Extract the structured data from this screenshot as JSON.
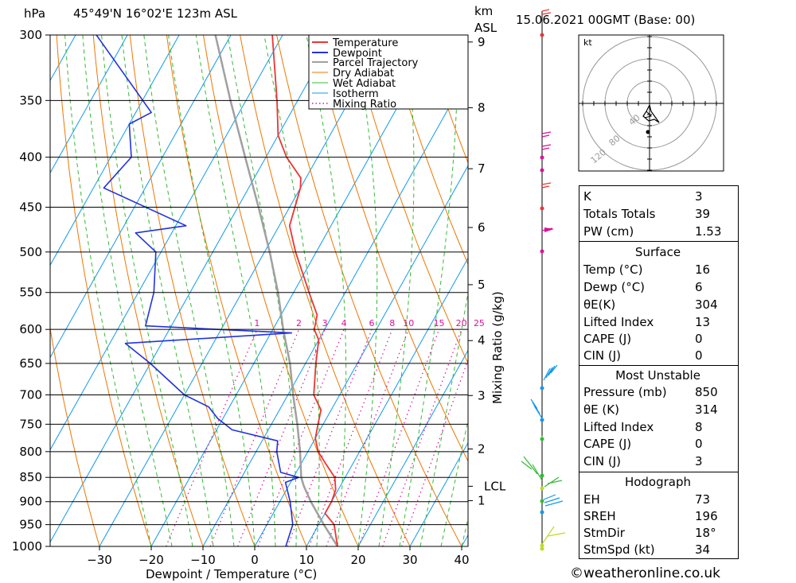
{
  "header": {
    "location": "45°49'N 16°02'E 123m ASL",
    "datetime": "15.06.2021 00GMT (Base: 00)",
    "left_unit": "hPa",
    "right_unit_1": "km",
    "right_unit_2": "ASL"
  },
  "legend": [
    "Temperature",
    "Dewpoint",
    "Parcel Trajectory",
    "Dry Adiabat",
    "Wet Adiabat",
    "Isotherm",
    "Mixing Ratio"
  ],
  "colors": {
    "temperature": "#ee3333",
    "dewpoint": "#2233dd",
    "parcel": "#a0a0a0",
    "dry_adiabat": "#ee7700",
    "wet_adiabat": "#33bb33",
    "isotherm": "#1199ee",
    "mixing_ratio": "#dd1199"
  },
  "chart_data": {
    "type": "skew-t",
    "xlabel": "Dewpoint / Temperature (°C)",
    "ylabel_right": "Mixing Ratio (g/kg)",
    "pressure_levels": [
      300,
      350,
      400,
      450,
      500,
      550,
      600,
      650,
      700,
      750,
      800,
      850,
      900,
      950,
      1000
    ],
    "pressure_labels": [
      "300",
      "350",
      "400",
      "450",
      "500",
      "550",
      "600",
      "650",
      "700",
      "750",
      "800",
      "850",
      "900",
      "950",
      "1000"
    ],
    "temperature_ticks": [
      -30,
      -20,
      -10,
      0,
      10,
      20,
      30,
      40
    ],
    "temperature_tick_labels": [
      "−30",
      "−20",
      "−10",
      "0",
      "10",
      "20",
      "30",
      "40"
    ],
    "altitude_km": [
      {
        "label": "9",
        "p": 305
      },
      {
        "label": "8",
        "p": 356
      },
      {
        "label": "7",
        "p": 411
      },
      {
        "label": "6",
        "p": 472
      },
      {
        "label": "5",
        "p": 540
      },
      {
        "label": "4",
        "p": 616
      },
      {
        "label": "3",
        "p": 701
      },
      {
        "label": "2",
        "p": 795
      },
      {
        "label": "LCL",
        "p": 868
      },
      {
        "label": "1",
        "p": 898
      }
    ],
    "mixing_ratio_labels": [
      "1",
      "2",
      "3",
      "4",
      "6",
      "8",
      "10",
      "15",
      "20",
      "25"
    ],
    "mixing_ratio_values": [
      1,
      2,
      3,
      4,
      6,
      8,
      10,
      15,
      20,
      25
    ],
    "temperature_profile": [
      {
        "p": 1000,
        "t": 16
      },
      {
        "p": 950,
        "t": 13
      },
      {
        "p": 925,
        "t": 10
      },
      {
        "p": 900,
        "t": 10
      },
      {
        "p": 875,
        "t": 9.5
      },
      {
        "p": 850,
        "t": 8
      },
      {
        "p": 825,
        "t": 5
      },
      {
        "p": 800,
        "t": 2
      },
      {
        "p": 775,
        "t": 0
      },
      {
        "p": 750,
        "t": -1
      },
      {
        "p": 725,
        "t": -2
      },
      {
        "p": 700,
        "t": -5
      },
      {
        "p": 650,
        "t": -8
      },
      {
        "p": 615,
        "t": -10
      },
      {
        "p": 600,
        "t": -12
      },
      {
        "p": 580,
        "t": -13
      },
      {
        "p": 550,
        "t": -17
      },
      {
        "p": 500,
        "t": -24
      },
      {
        "p": 470,
        "t": -28
      },
      {
        "p": 430,
        "t": -30
      },
      {
        "p": 420,
        "t": -31
      },
      {
        "p": 400,
        "t": -36
      },
      {
        "p": 380,
        "t": -40
      },
      {
        "p": 350,
        "t": -44
      },
      {
        "p": 300,
        "t": -52
      }
    ],
    "dewpoint_profile": [
      {
        "p": 1000,
        "t": 6
      },
      {
        "p": 950,
        "t": 5
      },
      {
        "p": 900,
        "t": 2
      },
      {
        "p": 860,
        "t": -1
      },
      {
        "p": 850,
        "t": 1
      },
      {
        "p": 840,
        "t": -3
      },
      {
        "p": 800,
        "t": -6
      },
      {
        "p": 780,
        "t": -7
      },
      {
        "p": 760,
        "t": -17
      },
      {
        "p": 740,
        "t": -21
      },
      {
        "p": 720,
        "t": -24
      },
      {
        "p": 700,
        "t": -30
      },
      {
        "p": 650,
        "t": -40
      },
      {
        "p": 620,
        "t": -47
      },
      {
        "p": 605,
        "t": -16
      },
      {
        "p": 595,
        "t": -45
      },
      {
        "p": 550,
        "t": -47
      },
      {
        "p": 500,
        "t": -51
      },
      {
        "p": 478,
        "t": -57
      },
      {
        "p": 470,
        "t": -48
      },
      {
        "p": 430,
        "t": -68
      },
      {
        "p": 400,
        "t": -66
      },
      {
        "p": 370,
        "t": -70
      },
      {
        "p": 360,
        "t": -67
      },
      {
        "p": 300,
        "t": -86
      }
    ],
    "parcel_profile": [
      {
        "p": 1000,
        "t": 16
      },
      {
        "p": 950,
        "t": 11
      },
      {
        "p": 900,
        "t": 6
      },
      {
        "p": 868,
        "t": 3
      },
      {
        "p": 850,
        "t": 1.5
      },
      {
        "p": 800,
        "t": -1.5
      },
      {
        "p": 750,
        "t": -5
      },
      {
        "p": 700,
        "t": -9
      },
      {
        "p": 650,
        "t": -13
      },
      {
        "p": 600,
        "t": -18
      },
      {
        "p": 550,
        "t": -23
      },
      {
        "p": 500,
        "t": -29
      },
      {
        "p": 450,
        "t": -36
      },
      {
        "p": 400,
        "t": -44
      },
      {
        "p": 350,
        "t": -53
      },
      {
        "p": 300,
        "t": -63
      }
    ]
  },
  "hodograph": {
    "unit": "kt",
    "ring_labels": [
      "40",
      "80",
      "120"
    ]
  },
  "indices": [
    {
      "label": "K",
      "value": "3"
    },
    {
      "label": "Totals Totals",
      "value": "39"
    },
    {
      "label": "PW (cm)",
      "value": "1.53"
    }
  ],
  "surface": {
    "title": "Surface",
    "rows": [
      {
        "label": "Temp (°C)",
        "value": "16"
      },
      {
        "label": "Dewp (°C)",
        "value": "6"
      },
      {
        "label": "θE(K)",
        "value": "304"
      },
      {
        "label": "Lifted Index",
        "value": "13"
      },
      {
        "label": "CAPE (J)",
        "value": "0"
      },
      {
        "label": "CIN (J)",
        "value": "0"
      }
    ]
  },
  "most_unstable": {
    "title": "Most Unstable",
    "rows": [
      {
        "label": "Pressure (mb)",
        "value": "850"
      },
      {
        "label": "θE (K)",
        "value": "314"
      },
      {
        "label": "Lifted Index",
        "value": "8"
      },
      {
        "label": "CAPE (J)",
        "value": "0"
      },
      {
        "label": "CIN (J)",
        "value": "3"
      }
    ]
  },
  "hodograph_stats": {
    "title": "Hodograph",
    "rows": [
      {
        "label": "EH",
        "value": "73"
      },
      {
        "label": "SREH",
        "value": "196"
      },
      {
        "label": "StmDir",
        "value": "18°"
      },
      {
        "label": "StmSpd (kt)",
        "value": "34"
      }
    ]
  },
  "footer": "©weatheronline.co.uk"
}
